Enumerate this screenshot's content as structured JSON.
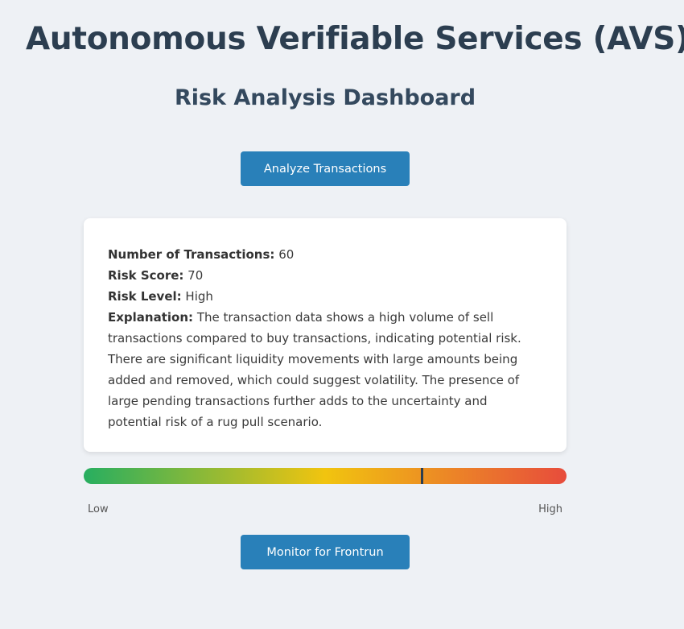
{
  "header": {
    "title": "Autonomous Verifiable Services (AVS)",
    "subtitle": "Risk Analysis Dashboard"
  },
  "actions": {
    "analyze_label": "Analyze Transactions",
    "monitor_label": "Monitor for Frontrun"
  },
  "result": {
    "transactions_label": "Number of Transactions:",
    "transactions_value": "60",
    "score_label": "Risk Score:",
    "score_value": "70",
    "level_label": "Risk Level:",
    "level_value": "High",
    "explanation_label": "Explanation:",
    "explanation_value": "The transaction data shows a high volume of sell transactions compared to buy transactions, indicating potential risk. There are significant liquidity movements with large amounts being added and removed, which could suggest volatility. The presence of large pending transactions further adds to the uncertainty and potential risk of a rug pull scenario."
  },
  "meter": {
    "level_percent": 70,
    "low_label": "Low",
    "high_label": "High",
    "colors": [
      "#27ae60",
      "#f1c40f",
      "#e74c3c"
    ]
  }
}
